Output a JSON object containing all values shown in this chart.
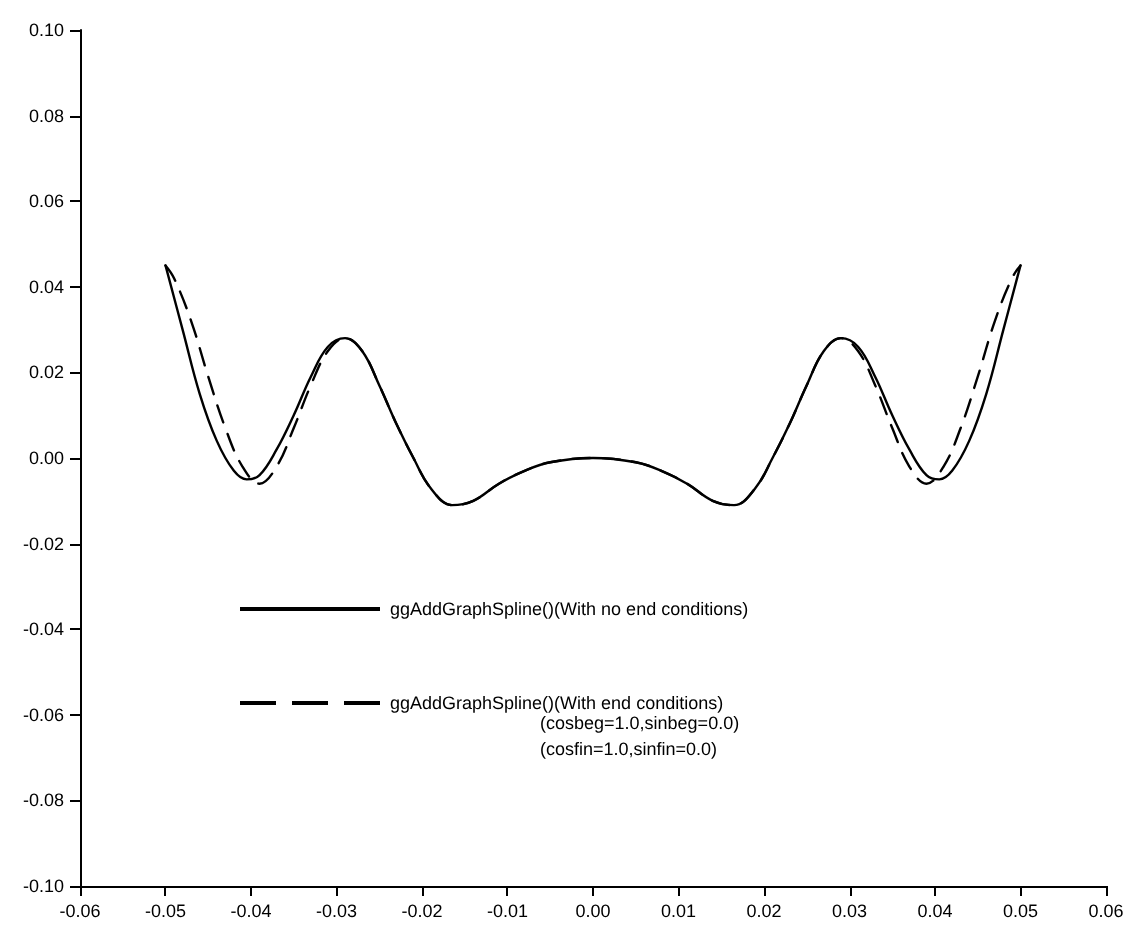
{
  "chart_data": {
    "type": "line",
    "xlim": [
      -0.06,
      0.06
    ],
    "ylim": [
      -0.1,
      0.1
    ],
    "xticks": [
      {
        "value": -0.06,
        "label": "-0.06"
      },
      {
        "value": -0.05,
        "label": "-0.05"
      },
      {
        "value": -0.04,
        "label": "-0.04"
      },
      {
        "value": -0.03,
        "label": "-0.03"
      },
      {
        "value": -0.02,
        "label": "-0.02"
      },
      {
        "value": -0.01,
        "label": "-0.01"
      },
      {
        "value": 0,
        "label": "0.00"
      },
      {
        "value": 0.01,
        "label": "0.01"
      },
      {
        "value": 0.02,
        "label": "0.02"
      },
      {
        "value": 0.03,
        "label": "0.03"
      },
      {
        "value": 0.04,
        "label": "0.04"
      },
      {
        "value": 0.05,
        "label": "0.05"
      },
      {
        "value": 0.06,
        "label": "0.06"
      }
    ],
    "yticks": [
      {
        "value": -0.1,
        "label": "-0.10"
      },
      {
        "value": -0.08,
        "label": "-0.08"
      },
      {
        "value": -0.06,
        "label": "-0.06"
      },
      {
        "value": -0.04,
        "label": "-0.04"
      },
      {
        "value": -0.02,
        "label": "-0.02"
      },
      {
        "value": 0,
        "label": "0.00"
      },
      {
        "value": 0.02,
        "label": "0.02"
      },
      {
        "value": 0.04,
        "label": "0.04"
      },
      {
        "value": 0.06,
        "label": "0.06"
      },
      {
        "value": 0.08,
        "label": "0.08"
      },
      {
        "value": 0.1,
        "label": "0.10"
      }
    ],
    "grid": false,
    "legend": "bottom left",
    "marker": "none",
    "series": [
      {
        "name": "ggAddGraphSpline()(With no end conditions)",
        "color": "#000000",
        "line_style": "solid",
        "x": [
          -0.05,
          -0.048,
          -0.046,
          -0.044,
          -0.042,
          -0.0405,
          -0.039,
          -0.037,
          -0.035,
          -0.033,
          -0.031,
          -0.029,
          -0.027,
          -0.025,
          -0.023,
          -0.021,
          -0.019,
          -0.0165,
          -0.014,
          -0.011,
          -0.008,
          -0.005,
          0,
          0.005,
          0.008,
          0.011,
          0.014,
          0.0165,
          0.019,
          0.021,
          0.023,
          0.025,
          0.027,
          0.029,
          0.031,
          0.033,
          0.035,
          0.037,
          0.039,
          0.0405,
          0.042,
          0.044,
          0.046,
          0.048,
          0.05
        ],
        "values": [
          0.045,
          0.03,
          0.015,
          0.004,
          -0.003,
          -0.005,
          -0.004,
          0.002,
          0.01,
          0.019,
          0.026,
          0.028,
          0.025,
          0.017,
          0.008,
          0.0,
          -0.007,
          -0.011,
          -0.01,
          -0.006,
          -0.003,
          -0.001,
          0,
          -0.001,
          -0.003,
          -0.006,
          -0.01,
          -0.011,
          -0.007,
          0.0,
          0.008,
          0.017,
          0.025,
          0.028,
          0.026,
          0.019,
          0.01,
          0.002,
          -0.004,
          -0.005,
          -0.003,
          0.004,
          0.015,
          0.03,
          0.045
        ]
      },
      {
        "name": "ggAddGraphSpline()(With end conditions)",
        "color": "#000000",
        "line_style": "dashed",
        "x": [
          -0.05,
          -0.049,
          -0.047,
          -0.045,
          -0.043,
          -0.041,
          -0.039,
          -0.037,
          -0.035,
          -0.033,
          -0.031,
          -0.029,
          -0.027,
          -0.025,
          -0.023,
          -0.021,
          -0.019,
          -0.0165,
          -0.014,
          -0.011,
          -0.008,
          -0.005,
          0,
          0.005,
          0.008,
          0.011,
          0.014,
          0.0165,
          0.019,
          0.021,
          0.023,
          0.025,
          0.027,
          0.029,
          0.031,
          0.033,
          0.035,
          0.037,
          0.039,
          0.041,
          0.043,
          0.045,
          0.047,
          0.049,
          0.05
        ],
        "values": [
          0.045,
          0.042,
          0.032,
          0.019,
          0.007,
          -0.002,
          -0.006,
          -0.002,
          0.007,
          0.017,
          0.025,
          0.028,
          0.025,
          0.017,
          0.008,
          0.0,
          -0.007,
          -0.011,
          -0.01,
          -0.006,
          -0.003,
          -0.001,
          0,
          -0.001,
          -0.003,
          -0.006,
          -0.01,
          -0.011,
          -0.007,
          0.0,
          0.008,
          0.017,
          0.025,
          0.028,
          0.025,
          0.017,
          0.007,
          -0.002,
          -0.006,
          -0.002,
          0.007,
          0.019,
          0.032,
          0.042,
          0.045
        ]
      }
    ],
    "annotations": [
      "(cosbeg=1.0,sinbeg=0.0)",
      "(cosfin=1.0,sinfin=0.0)"
    ]
  }
}
